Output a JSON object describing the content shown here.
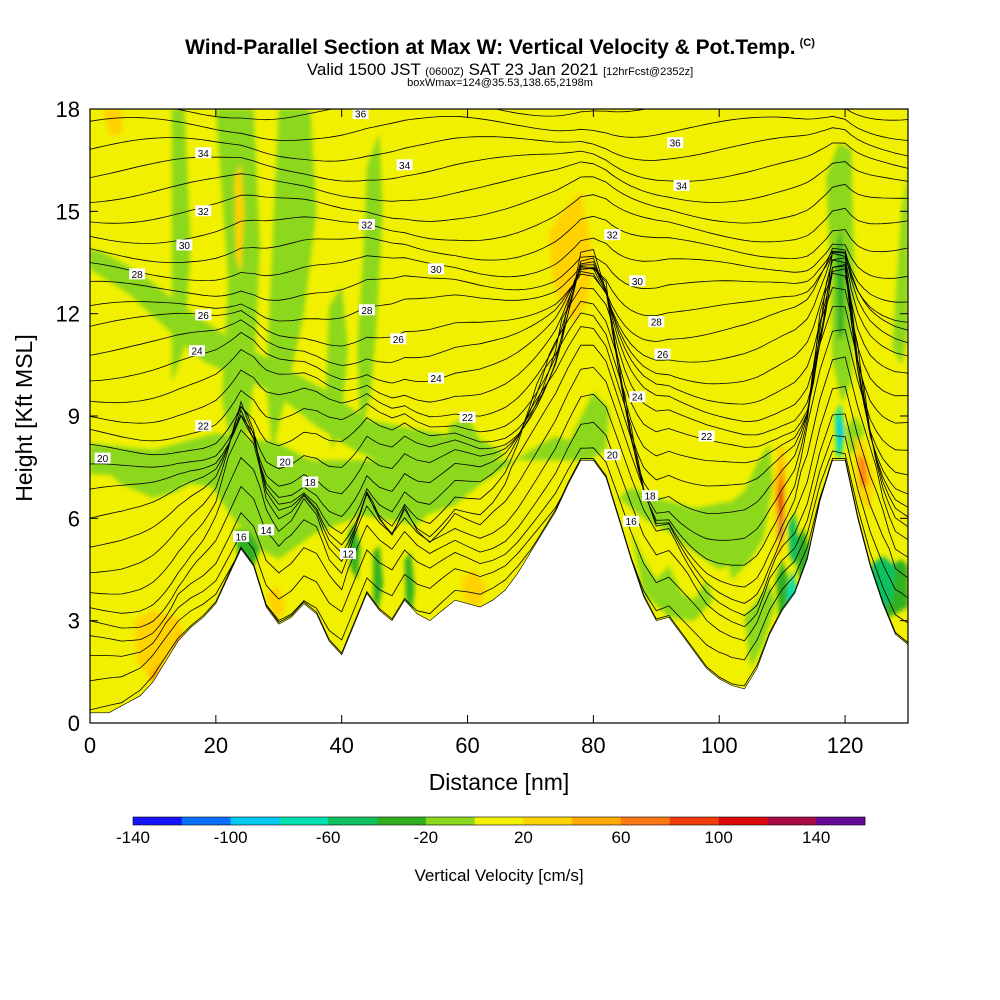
{
  "header": {
    "title": "Wind-Parallel Section at Max W: Vertical Velocity & Pot.Temp.",
    "title_mark": "(C)",
    "subtitle_valid": "Valid 1500 JST",
    "subtitle_utc": "(0600Z)",
    "subtitle_date": "SAT 23 Jan 2021",
    "subtitle_fcst": "[12hrFcst@2352z]",
    "boxline": "boxWmax=124@35.53,138.65,2198m"
  },
  "chart_data": {
    "type": "heatmap",
    "xlabel": "Distance [nm]",
    "ylabel": "Height [Kft MSL]",
    "xlim": [
      0,
      130
    ],
    "ylim": [
      0,
      18
    ],
    "x_ticks": [
      "0",
      "20",
      "40",
      "60",
      "80",
      "100",
      "120"
    ],
    "y_ticks": [
      "0",
      "3",
      "6",
      "9",
      "12",
      "15",
      "18"
    ],
    "colorbar": {
      "label": "Vertical Velocity [cm/s]",
      "tick_labels": [
        "-140",
        "-100",
        "-60",
        "-20",
        "20",
        "60",
        "100",
        "140"
      ],
      "colors": [
        "#1414ff",
        "#0a6eff",
        "#00c8f0",
        "#00e0b0",
        "#10c060",
        "#30b020",
        "#8cd81e",
        "#f0f000",
        "#ffd200",
        "#ffaa00",
        "#ff7814",
        "#f03c0a",
        "#dc0a0a",
        "#aa0a46",
        "#640a96"
      ]
    },
    "theta_contour_labels": [
      {
        "v": "36",
        "x": 43,
        "y": 17.85
      },
      {
        "v": "36",
        "x": 93,
        "y": 17.0
      },
      {
        "v": "34",
        "x": 18,
        "y": 16.7
      },
      {
        "v": "34",
        "x": 50,
        "y": 16.35
      },
      {
        "v": "34",
        "x": 94,
        "y": 15.75
      },
      {
        "v": "32",
        "x": 18,
        "y": 15.0
      },
      {
        "v": "32",
        "x": 44,
        "y": 14.6
      },
      {
        "v": "32",
        "x": 83,
        "y": 14.3
      },
      {
        "v": "30",
        "x": 15,
        "y": 14.0
      },
      {
        "v": "30",
        "x": 55,
        "y": 13.3
      },
      {
        "v": "30",
        "x": 87,
        "y": 12.95
      },
      {
        "v": "28",
        "x": 7.5,
        "y": 13.15
      },
      {
        "v": "28",
        "x": 44,
        "y": 12.1
      },
      {
        "v": "28",
        "x": 90,
        "y": 11.75
      },
      {
        "v": "26",
        "x": 18,
        "y": 11.95
      },
      {
        "v": "26",
        "x": 49,
        "y": 11.25
      },
      {
        "v": "26",
        "x": 91,
        "y": 10.8
      },
      {
        "v": "24",
        "x": 17,
        "y": 10.9
      },
      {
        "v": "24",
        "x": 55,
        "y": 10.1
      },
      {
        "v": "24",
        "x": 87,
        "y": 9.55
      },
      {
        "v": "22",
        "x": 18,
        "y": 8.7
      },
      {
        "v": "22",
        "x": 60,
        "y": 8.95
      },
      {
        "v": "22",
        "x": 98,
        "y": 8.4
      },
      {
        "v": "20",
        "x": 2,
        "y": 7.75
      },
      {
        "v": "20",
        "x": 31,
        "y": 7.65
      },
      {
        "v": "20",
        "x": 83,
        "y": 7.85
      },
      {
        "v": "18",
        "x": 35,
        "y": 7.05
      },
      {
        "v": "18",
        "x": 89,
        "y": 6.65
      },
      {
        "v": "16",
        "x": 24,
        "y": 5.45
      },
      {
        "v": "16",
        "x": 86,
        "y": 5.9
      },
      {
        "v": "14",
        "x": 28,
        "y": 5.65
      },
      {
        "v": "12",
        "x": 41,
        "y": 4.95
      }
    ],
    "terrain_profile": {
      "x": [
        0,
        3,
        6,
        8,
        10,
        12,
        14,
        16,
        18,
        20,
        22,
        24,
        26,
        28,
        30,
        32,
        34,
        36,
        38,
        40,
        42,
        44,
        46,
        48,
        50,
        52,
        54,
        56,
        58,
        60,
        62,
        64,
        66,
        68,
        70,
        72,
        74,
        76,
        78,
        80,
        82,
        84,
        86,
        88,
        90,
        92,
        94,
        96,
        98,
        100,
        102,
        104,
        106,
        108,
        110,
        112,
        114,
        116,
        118,
        120,
        122,
        124,
        126,
        128,
        130
      ],
      "y": [
        0.3,
        0.3,
        0.6,
        0.8,
        1.2,
        1.8,
        2.4,
        2.8,
        3.1,
        3.5,
        4.3,
        5.1,
        4.6,
        3.4,
        2.9,
        3.1,
        3.5,
        3.2,
        2.4,
        2.0,
        2.9,
        3.8,
        3.3,
        3.0,
        3.6,
        3.2,
        3.0,
        3.3,
        3.6,
        3.5,
        3.4,
        3.6,
        3.9,
        4.4,
        5.0,
        5.6,
        6.2,
        7.0,
        7.7,
        7.7,
        7.2,
        6.0,
        4.8,
        3.7,
        3.0,
        3.1,
        2.6,
        2.1,
        1.6,
        1.3,
        1.1,
        1.0,
        1.6,
        2.6,
        3.3,
        3.8,
        4.8,
        6.5,
        7.7,
        7.7,
        6.0,
        4.6,
        3.5,
        2.6,
        2.3
      ]
    }
  }
}
